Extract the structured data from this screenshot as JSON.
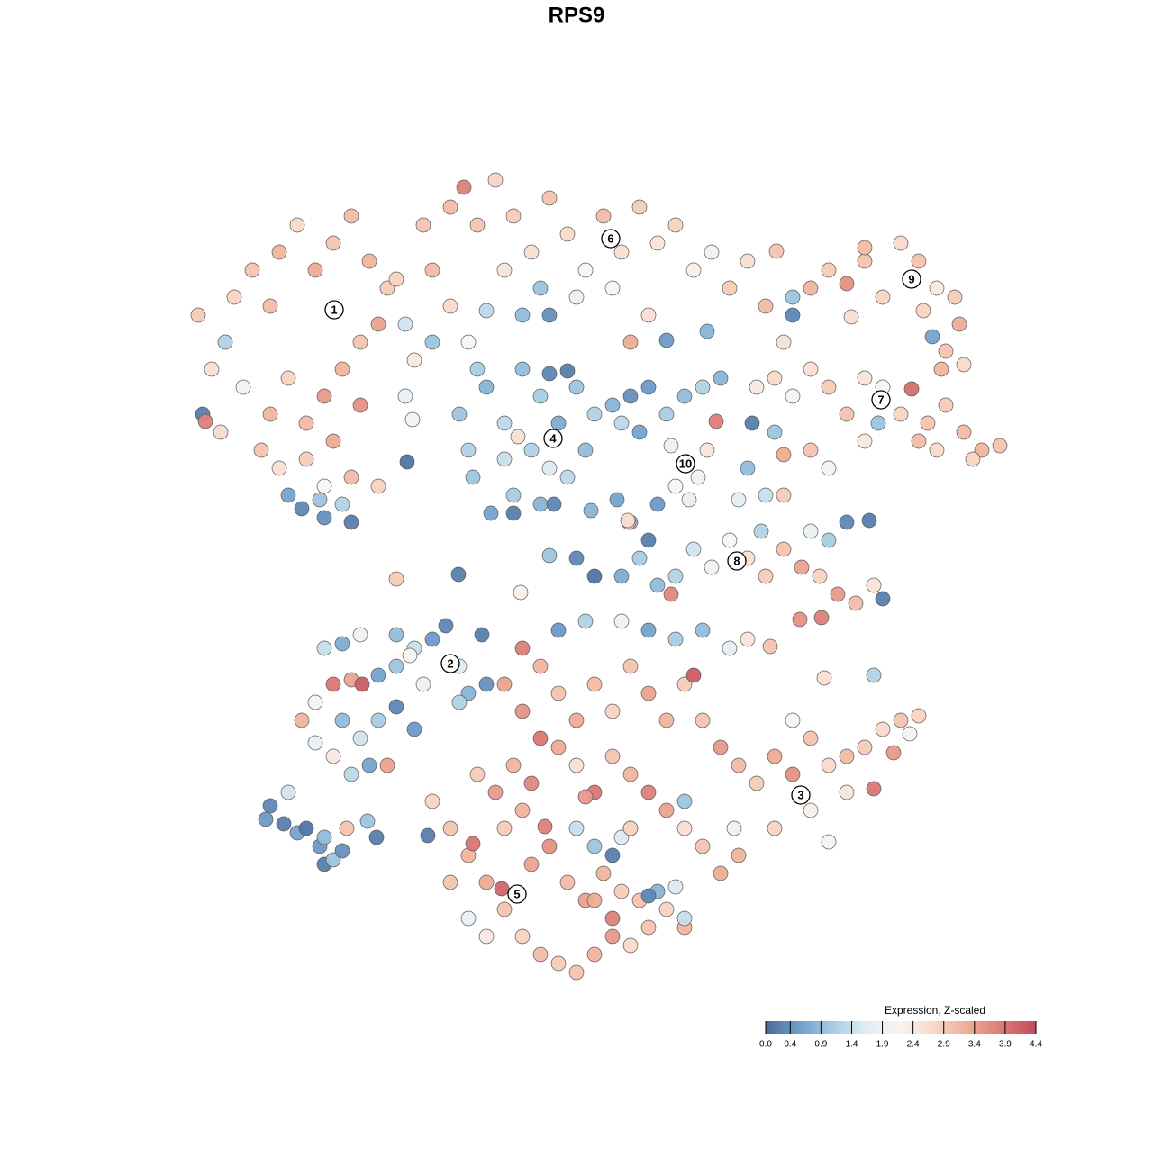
{
  "chart_data": {
    "type": "scatter",
    "title": "RPS9",
    "xlim": [
      200,
      1130
    ],
    "ylim": [
      1100,
      180
    ],
    "series": [
      {
        "x": [
          220,
          235,
          250,
          260,
          280,
          300,
          310,
          330,
          350,
          370,
          390,
          410,
          430,
          420,
          400,
          380,
          360,
          340,
          320,
          300,
          290,
          310,
          340,
          370,
          400,
          390,
          420,
          360,
          225,
          228,
          245,
          270,
          450,
          460,
          480,
          450,
          320,
          335,
          360,
          390,
          380,
          355,
          440,
          470,
          500,
          515,
          530,
          550,
          570,
          590,
          610,
          630,
          650,
          670,
          690,
          710,
          730,
          750,
          770,
          790,
          810,
          830,
          850,
          870,
          560,
          600,
          640,
          680,
          700,
          720,
          610,
          580,
          540,
          520,
          880,
          785,
          740,
          480,
          500,
          510,
          520,
          540,
          560,
          580,
          600,
          620,
          640,
          660,
          650,
          630,
          600,
          570,
          545,
          525,
          560,
          590,
          610,
          575,
          610,
          630,
          680,
          700,
          720,
          740,
          760,
          780,
          800,
          690,
          710,
          530,
          570,
          615,
          656,
          452,
          458,
          745,
          760,
          775,
          750,
          785,
          765,
          795,
          840,
          860,
          880,
          900,
          920,
          940,
          960,
          980,
          1000,
          1012,
          1030,
          1050,
          1070,
          1090,
          1110,
          1040,
          1020,
          1080,
          960,
          900,
          870,
          920,
          830,
          850,
          820,
          845,
          870,
          860,
          835,
          975,
          880,
          900,
          920,
          940,
          960,
          980,
          1000,
          1020,
          1040,
          1060,
          1065,
          1050,
          1070,
          1025,
          960,
          1035,
          945,
          1045,
          862,
          690,
          710,
          730,
          750,
          770,
          790,
          810,
          830,
          850,
          870,
          890,
          910,
          930,
          950,
          970,
          980,
          900,
          920,
          940,
          965,
          888,
          912,
          745,
          720,
          700,
          685,
          698,
          335,
          350,
          370,
          390,
          402,
          420,
          440,
          460,
          480,
          495,
          510,
          520,
          540,
          380,
          400,
          420,
          410,
          440,
          350,
          370,
          390,
          430,
          460,
          470,
          360,
          380,
          400,
          440,
          455,
          510,
          535,
          560,
          580,
          600,
          620,
          640,
          660,
          680,
          700,
          720,
          740,
          760,
          770,
          780,
          800,
          820,
          840,
          860,
          880,
          900,
          920,
          940,
          960,
          980,
          1000,
          1020,
          970,
          940,
          900,
          860,
          820,
          800,
          780,
          760,
          740,
          720,
          700,
          680,
          660,
          640,
          620,
          600,
          590,
          570,
          550,
          530,
          580,
          620,
          650,
          690,
          720,
          750,
          780,
          810,
          830,
          855,
          970,
          915,
          760,
          700,
          815,
          880,
          992,
          1010,
          920,
          480,
          500,
          520,
          525,
          540,
          557,
          560,
          580,
          600,
          620,
          640,
          660,
          680,
          700,
          720,
          740,
          760,
          590,
          610,
          605,
          630,
          650,
          670,
          690,
          710,
          730,
          750,
          540,
          520,
          500,
          560,
          580,
          640,
          660,
          680,
          690,
          720,
          680,
          700,
          760,
          650,
          660,
          295,
          300,
          315,
          330,
          340,
          355,
          360,
          370,
          380,
          385,
          360,
          320,
          408,
          418,
          440,
          509,
          578,
          610,
          640,
          660,
          730,
          697,
          475
        ],
        "y": [
          350,
          410,
          380,
          330,
          300,
          340,
          280,
          250,
          300,
          270,
          240,
          290,
          320,
          360,
          380,
          410,
          440,
          470,
          420,
          460,
          500,
          520,
          510,
          490,
          450,
          530,
          540,
          540,
          460,
          468,
          480,
          430,
          360,
          400,
          380,
          440,
          550,
          565,
          575,
          580,
          560,
          555,
          310,
          250,
          230,
          208,
          250,
          200,
          240,
          280,
          220,
          260,
          300,
          240,
          280,
          230,
          270,
          250,
          300,
          280,
          320,
          290,
          340,
          380,
          300,
          320,
          330,
          320,
          380,
          350,
          350,
          350,
          345,
          380,
          350,
          368,
          378,
          300,
          340,
          460,
          500,
          430,
          470,
          410,
          440,
          470,
          430,
          460,
          500,
          530,
          560,
          550,
          570,
          530,
          510,
          500,
          520,
          485,
          415,
          412,
          450,
          440,
          430,
          460,
          440,
          430,
          420,
          470,
          480,
          410,
          570,
          560,
          567,
          513,
          466,
          495,
          515,
          530,
          540,
          500,
          555,
          468,
          430,
          420,
          440,
          410,
          430,
          460,
          420,
          430,
          460,
          432,
          470,
          450,
          480,
          500,
          495,
          500,
          490,
          510,
          490,
          500,
          505,
          520,
          520,
          550,
          555,
          590,
          550,
          480,
          470,
          470,
          330,
          320,
          300,
          315,
          290,
          330,
          270,
          290,
          320,
          330,
          360,
          390,
          405,
          345,
          275,
          374,
          352,
          410,
          279,
          640,
          620,
          650,
          640,
          610,
          630,
          600,
          620,
          640,
          610,
          630,
          640,
          660,
          670,
          650,
          665,
          590,
          600,
          580,
          578,
          688,
          686,
          660,
          600,
          580,
          555,
          580,
          800,
          780,
          760,
          755,
          760,
          750,
          740,
          720,
          710,
          695,
          740,
          770,
          760,
          800,
          820,
          800,
          850,
          785,
          825,
          840,
          860,
          850,
          810,
          760,
          720,
          715,
          705,
          705,
          728,
          780,
          705,
          760,
          790,
          740,
          770,
          800,
          760,
          790,
          740,
          770,
          800,
          760,
          750,
          800,
          830,
          850,
          870,
          840,
          860,
          820,
          850,
          880,
          830,
          810,
          800,
          795,
          876,
          840,
          900,
          920,
          950,
          970,
          940,
          920,
          900,
          880,
          860,
          840,
          880,
          850,
          830,
          820,
          870,
          850,
          880,
          860,
          720,
          700,
          690,
          690,
          700,
          710,
          700,
          720,
          710,
          718,
          750,
          753,
          890,
          920,
          920,
          800,
          836,
          815,
          935,
          890,
          920,
          950,
          937,
          980,
          987,
          1010,
          1040,
          1060,
          1070,
          1080,
          1060,
          1040,
          1050,
          1030,
          1010,
          1030,
          960,
          940,
          918,
          980,
          1000,
          970,
          990,
          1000,
          990,
          985,
          1040,
          1020,
          980,
          920,
          900,
          920,
          940,
          950,
          930,
          995,
          1020,
          920,
          1020,
          885,
          1000,
          910,
          895,
          915,
          925,
          920,
          940,
          960,
          955,
          945,
          920,
          930,
          880,
          912,
          930,
          643,
          638,
          658,
          617,
          620,
          640,
          560,
          578,
          928
        ],
        "values": [
          2.9,
          2.6,
          1.2,
          2.8,
          3.0,
          3.1,
          3.2,
          2.7,
          3.3,
          3.0,
          3.1,
          3.2,
          2.9,
          3.4,
          3.0,
          3.2,
          3.5,
          3.1,
          2.8,
          3.2,
          3.0,
          2.6,
          2.9,
          3.3,
          3.6,
          3.1,
          2.8,
          2.2,
          0.2,
          3.8,
          2.7,
          2.1,
          1.5,
          2.4,
          1.0,
          1.8,
          0.6,
          0.3,
          0.4,
          0.2,
          1.2,
          1.0,
          2.8,
          3.0,
          3.1,
          3.8,
          3.0,
          2.8,
          2.9,
          2.6,
          3.0,
          2.7,
          2.2,
          3.1,
          2.6,
          2.9,
          2.5,
          2.8,
          2.3,
          2.0,
          2.9,
          2.6,
          3.1,
          2.6,
          2.5,
          1.0,
          1.9,
          2.2,
          3.3,
          2.6,
          0.4,
          0.9,
          1.3,
          2.2,
          0.3,
          0.8,
          0.5,
          3.1,
          2.7,
          1.0,
          1.2,
          0.8,
          1.3,
          0.9,
          1.1,
          0.7,
          1.0,
          1.2,
          0.9,
          1.3,
          0.8,
          1.1,
          0.6,
          1.0,
          1.4,
          1.2,
          1.6,
          2.6,
          0.3,
          0.2,
          0.8,
          0.4,
          0.5,
          1.1,
          0.9,
          1.2,
          0.8,
          1.3,
          0.6,
          1.1,
          0.2,
          0.3,
          0.8,
          0.1,
          2.1,
          1.9,
          2.3,
          2.0,
          2.2,
          2.5,
          1.8,
          3.8,
          2.4,
          2.7,
          2.1,
          2.6,
          2.9,
          3.0,
          2.5,
          2.2,
          2.8,
          4.0,
          3.0,
          2.9,
          3.1,
          3.2,
          3.0,
          2.7,
          3.1,
          2.8,
          2.4,
          3.0,
          3.3,
          2.1,
          0.9,
          1.4,
          1.7,
          1.2,
          2.9,
          1.0,
          0.2,
          1.0,
          1.0,
          3.2,
          2.9,
          3.6,
          3.0,
          2.8,
          2.7,
          3.0,
          2.4,
          2.9,
          3.3,
          3.0,
          2.7,
          2.8,
          3.1,
          0.6,
          2.6,
          3.2,
          3.0,
          0.7,
          1.1,
          0.9,
          1.2,
          1.5,
          2.0,
          2.2,
          2.6,
          2.9,
          3.0,
          3.4,
          2.8,
          3.5,
          3.1,
          2.5,
          0.2,
          1.8,
          1.1,
          0.3,
          0.2,
          3.6,
          3.8,
          3.7,
          0.2,
          1.0,
          0.6,
          3.0,
          3.2,
          2.1,
          3.9,
          3.4,
          4.2,
          0.6,
          1.0,
          1.4,
          0.5,
          0.3,
          1.6,
          0.8,
          0.4,
          0.9,
          1.5,
          1.1,
          0.6,
          0.3,
          1.8,
          2.4,
          1.3,
          3.4,
          0.5,
          1.9,
          1.4,
          0.7,
          2.0,
          0.9,
          2.2,
          1.2,
          0.2,
          3.4,
          3.6,
          3.2,
          3.0,
          3.3,
          3.1,
          2.8,
          3.0,
          3.4,
          3.2,
          2.9,
          4.2,
          3.0,
          3.5,
          3.1,
          2.9,
          3.3,
          3.6,
          3.0,
          2.7,
          2.5,
          2.9,
          2.7,
          3.0,
          2.8,
          3.9,
          3.1,
          2.3,
          2.8,
          3.2,
          3.3,
          3.0,
          2.6,
          3.4,
          3.8,
          3.2,
          3.0,
          3.9,
          2.6,
          3.3,
          3.9,
          3.7,
          3.2,
          3.5,
          2.9,
          3.8,
          0.5,
          1.2,
          2.0,
          0.6,
          1.1,
          0.9,
          1.7,
          2.5,
          3.0,
          1.2,
          2.6,
          1.0,
          2.3,
          2.0,
          2.2,
          3.5,
          2.1,
          2.1,
          2.8,
          3.0,
          3.2,
          3.9,
          3.3,
          4.1,
          3.0,
          2.8,
          3.1,
          2.9,
          3.0,
          3.2,
          3.5,
          2.7,
          3.0,
          2.8,
          3.2,
          3.4,
          3.6,
          3.8,
          3.1,
          3.4,
          3.2,
          2.9,
          3.0,
          0.8,
          1.6,
          2.4,
          1.8,
          3.0,
          2.9,
          3.2,
          1.4,
          1.0,
          0.2,
          1.6,
          0.3,
          3.8,
          2.8,
          1.4,
          3.5,
          3.3,
          0.5,
          0.3,
          0.2,
          0.6,
          0.1,
          0.5,
          0.2,
          1.0,
          0.4,
          3.0,
          0.9,
          1.5,
          1.0,
          0.2,
          2.9,
          0.2,
          2.3,
          1.0,
          0.3,
          0.1,
          0.5,
          2.6,
          0.2
        ]
      }
    ],
    "annotations": [
      {
        "text": "1",
        "x": 371,
        "y": 344
      },
      {
        "text": "2",
        "x": 500,
        "y": 737
      },
      {
        "text": "3",
        "x": 889,
        "y": 883
      },
      {
        "text": "4",
        "x": 614,
        "y": 487
      },
      {
        "text": "5",
        "x": 574,
        "y": 993
      },
      {
        "text": "6",
        "x": 678,
        "y": 265
      },
      {
        "text": "7",
        "x": 978,
        "y": 444
      },
      {
        "text": "8",
        "x": 818,
        "y": 623
      },
      {
        "text": "9",
        "x": 1012,
        "y": 310
      },
      {
        "text": "10",
        "x": 761,
        "y": 515
      }
    ],
    "colorbar": {
      "title": "Expression, Z-scaled",
      "lim": [
        0,
        4.4
      ],
      "ticks": [
        {
          "value": 0,
          "label": "0.0"
        },
        0.4,
        0.9,
        1.4,
        1.9,
        2.4,
        2.9,
        3.4,
        3.9,
        4.4
      ],
      "colors": [
        "#4a6b9a",
        "#6f9fcc",
        "#a6cde2",
        "#e3edf3",
        "#f8f4f1",
        "#f9d7c6",
        "#eeac94",
        "#db7b77",
        "#c44b5b"
      ]
    }
  }
}
